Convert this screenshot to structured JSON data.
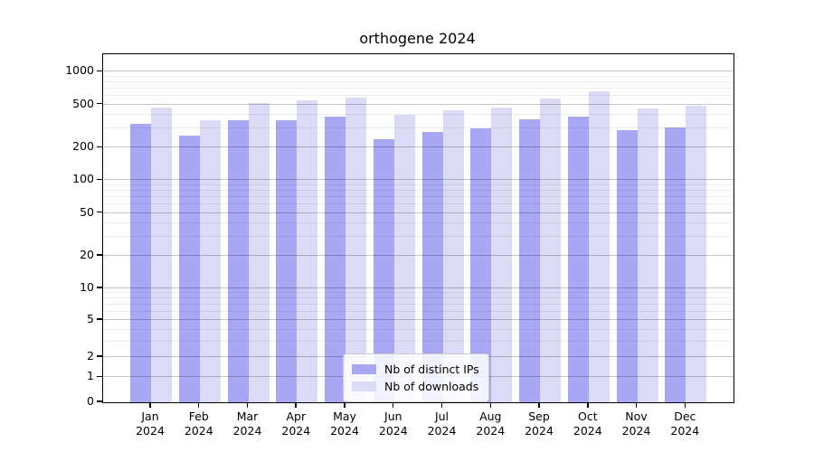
{
  "chart_data": {
    "type": "bar",
    "title": "orthogene 2024",
    "categories": [
      "Jan",
      "Feb",
      "Mar",
      "Apr",
      "May",
      "Jun",
      "Jul",
      "Aug",
      "Sep",
      "Oct",
      "Nov",
      "Dec"
    ],
    "year": "2024",
    "series": [
      {
        "name": "Nb of distinct IPs",
        "color": "#a7a7f4",
        "values": [
          330,
          260,
          360,
          355,
          385,
          240,
          280,
          300,
          365,
          390,
          290,
          305
        ]
      },
      {
        "name": "Nb of downloads",
        "color": "#dbdbf8",
        "values": [
          470,
          360,
          520,
          545,
          575,
          405,
          440,
          470,
          570,
          655,
          455,
          490
        ]
      }
    ],
    "yticks": [
      0,
      1,
      2,
      5,
      10,
      20,
      50,
      100,
      200,
      500,
      1000
    ],
    "ylim": [
      0,
      1450
    ],
    "yscale": "asinh",
    "grid": true,
    "legend_position": "lower center",
    "xlabel": "",
    "ylabel": ""
  }
}
